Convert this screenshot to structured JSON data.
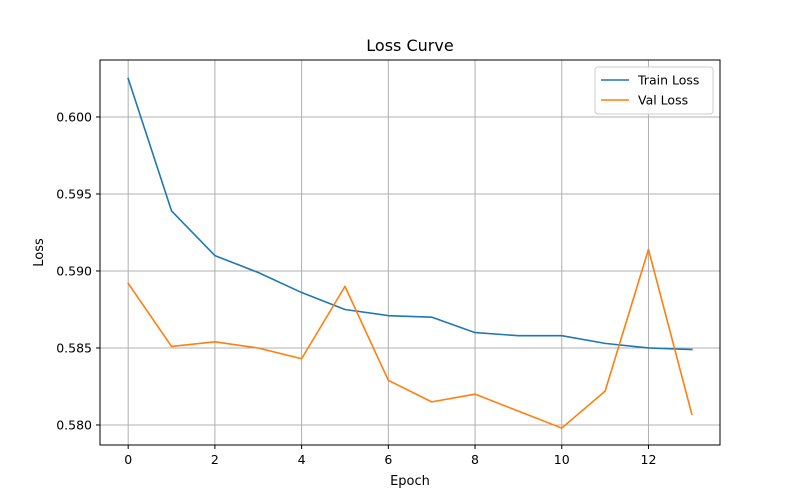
{
  "chart_data": {
    "type": "line",
    "title": "Loss Curve",
    "xlabel": "Epoch",
    "ylabel": "Loss",
    "xlim": [
      -0.65,
      13.65
    ],
    "ylim": [
      0.5787,
      0.6037
    ],
    "xticks": [
      0,
      2,
      4,
      6,
      8,
      10,
      12
    ],
    "yticks": [
      0.58,
      0.585,
      0.59,
      0.595,
      0.6
    ],
    "xtick_labels": [
      "0",
      "2",
      "4",
      "6",
      "8",
      "10",
      "12"
    ],
    "ytick_labels": [
      "0.580",
      "0.585",
      "0.590",
      "0.595",
      "0.600"
    ],
    "grid": true,
    "legend_position": "top-right",
    "x": [
      0,
      1,
      2,
      3,
      4,
      5,
      6,
      7,
      8,
      9,
      10,
      11,
      12,
      13
    ],
    "series": [
      {
        "name": "Train Loss",
        "color": "#1f77b4",
        "values": [
          0.6025,
          0.5939,
          0.591,
          0.5899,
          0.5886,
          0.5875,
          0.5871,
          0.587,
          0.586,
          0.5858,
          0.5858,
          0.5853,
          0.585,
          0.5849
        ]
      },
      {
        "name": "Val Loss",
        "color": "#ff7f0e",
        "values": [
          0.5892,
          0.5851,
          0.5854,
          0.585,
          0.5843,
          0.589,
          0.5829,
          0.5815,
          0.582,
          0.5809,
          0.5798,
          0.5822,
          0.5914,
          0.5807
        ]
      }
    ]
  }
}
